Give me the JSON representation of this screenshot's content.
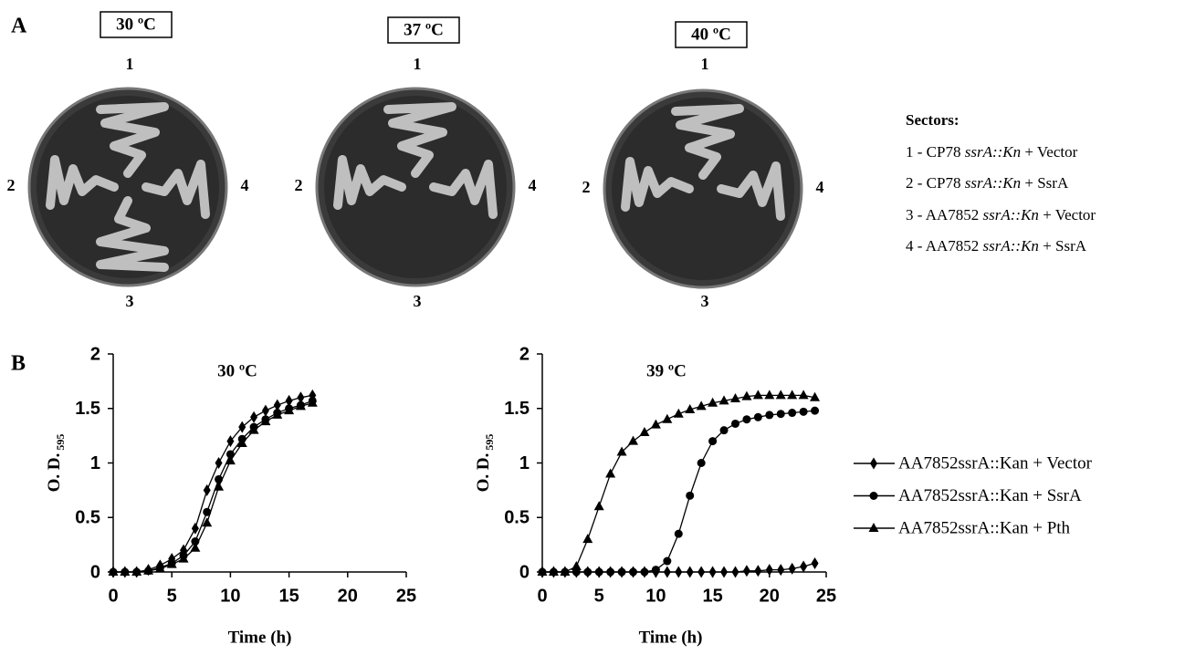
{
  "panel_a": {
    "label": "A",
    "plates": [
      {
        "temperature": "30 ºC",
        "top": "1",
        "left": "2",
        "right": "4",
        "bottom": "3"
      },
      {
        "temperature": "37 ºC",
        "top": "1",
        "left": "2",
        "right": "4",
        "bottom": "3"
      },
      {
        "temperature": "40 ºC",
        "top": "1",
        "left": "2",
        "right": "4",
        "bottom": "3"
      }
    ],
    "sectors_title": "Sectors:",
    "sectors": [
      {
        "prefix": "1 - CP78",
        "gene": "ssrA::Kn",
        "suffix": "+ Vector"
      },
      {
        "prefix": "2 - CP78",
        "gene": "ssrA::Kn",
        "suffix": "+ SsrA"
      },
      {
        "prefix": "3 - AA7852",
        "gene": "ssrA::Kn",
        "suffix": "+ Vector"
      },
      {
        "prefix": "4 - AA7852",
        "gene": "ssrA::Kn",
        "suffix": "+ SsrA"
      }
    ]
  },
  "panel_b_label": "B",
  "chart_data": [
    {
      "type": "line",
      "title": "30 ºC",
      "x_label": "Time (h)",
      "y_label": "O. D.",
      "y_label_sub": "595",
      "xlim": [
        0,
        25
      ],
      "xticks": [
        0,
        5,
        10,
        15,
        20,
        25
      ],
      "ylim": [
        0,
        2
      ],
      "yticks": [
        0,
        0.5,
        1,
        1.5,
        2
      ],
      "x": [
        0,
        1,
        2,
        3,
        4,
        5,
        6,
        7,
        8,
        9,
        10,
        11,
        12,
        13,
        14,
        15,
        16,
        17
      ],
      "series": [
        {
          "marker": "diamond",
          "color": "#000000",
          "values": [
            0,
            0,
            0,
            0.02,
            0.06,
            0.12,
            0.2,
            0.4,
            0.75,
            1.0,
            1.2,
            1.33,
            1.42,
            1.48,
            1.53,
            1.57,
            1.6,
            1.62
          ]
        },
        {
          "marker": "circle",
          "color": "#000000",
          "values": [
            0,
            0,
            0,
            0.01,
            0.04,
            0.08,
            0.15,
            0.28,
            0.55,
            0.85,
            1.08,
            1.22,
            1.33,
            1.4,
            1.46,
            1.5,
            1.53,
            1.57
          ]
        },
        {
          "marker": "triangle",
          "color": "#000000",
          "values": [
            0,
            0,
            0,
            0.01,
            0.03,
            0.07,
            0.12,
            0.22,
            0.45,
            0.78,
            1.02,
            1.18,
            1.3,
            1.38,
            1.44,
            1.48,
            1.52,
            1.55
          ]
        }
      ]
    },
    {
      "type": "line",
      "title": "39 ºC",
      "x_label": "Time (h)",
      "y_label": "O. D.",
      "y_label_sub": "595",
      "xlim": [
        0,
        25
      ],
      "xticks": [
        0,
        5,
        10,
        15,
        20,
        25
      ],
      "ylim": [
        0,
        2
      ],
      "yticks": [
        0,
        0.5,
        1,
        1.5,
        2
      ],
      "x": [
        0,
        1,
        2,
        3,
        4,
        5,
        6,
        7,
        8,
        9,
        10,
        11,
        12,
        13,
        14,
        15,
        16,
        17,
        18,
        19,
        20,
        21,
        22,
        23,
        24
      ],
      "series": [
        {
          "name": "AA7852ssrA::Kan + Vector",
          "marker": "diamond",
          "color": "#000000",
          "values": [
            0,
            0,
            0,
            0,
            0,
            0,
            0,
            0,
            0,
            0,
            0,
            0,
            0,
            0,
            0,
            0,
            0,
            0,
            0.01,
            0.01,
            0.02,
            0.02,
            0.03,
            0.05,
            0.08
          ]
        },
        {
          "name": "AA7852ssrA::Kan + SsrA",
          "marker": "circle",
          "color": "#000000",
          "values": [
            0,
            0,
            0,
            0,
            0,
            0,
            0,
            0,
            0,
            0,
            0.02,
            0.1,
            0.35,
            0.7,
            1.0,
            1.2,
            1.3,
            1.36,
            1.4,
            1.42,
            1.44,
            1.45,
            1.46,
            1.47,
            1.48
          ]
        },
        {
          "name": "AA7852ssrA::Kan + Pth",
          "marker": "triangle",
          "color": "#000000",
          "values": [
            0,
            0,
            0,
            0.05,
            0.3,
            0.6,
            0.9,
            1.1,
            1.2,
            1.28,
            1.35,
            1.4,
            1.45,
            1.49,
            1.52,
            1.55,
            1.57,
            1.59,
            1.61,
            1.62,
            1.62,
            1.62,
            1.62,
            1.62,
            1.6
          ]
        }
      ]
    }
  ]
}
